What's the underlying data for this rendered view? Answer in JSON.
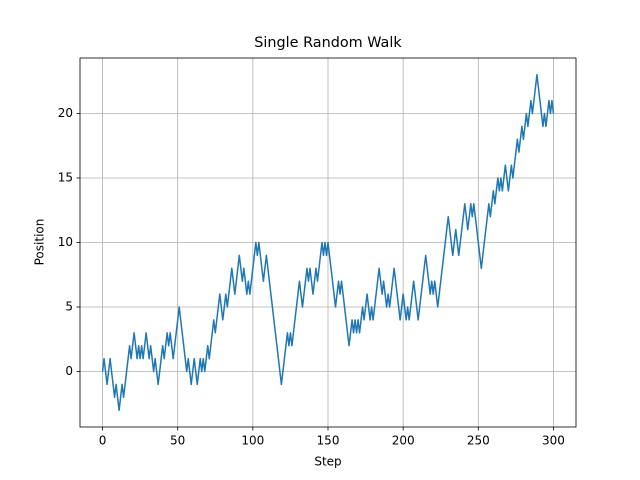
{
  "chart_data": {
    "type": "line",
    "title": "Single Random Walk",
    "x_label": "Step",
    "y_label": "Position",
    "color": "#1f77b4",
    "grid": true,
    "xlim": [
      -15,
      315
    ],
    "ylim": [
      -4.3,
      24.3
    ],
    "xticks": [
      0,
      50,
      100,
      150,
      200,
      250,
      300
    ],
    "yticks": [
      0,
      5,
      10,
      15,
      20
    ],
    "x": [
      0,
      1,
      2,
      3,
      4,
      5,
      6,
      7,
      8,
      9,
      10,
      11,
      12,
      13,
      14,
      15,
      16,
      17,
      18,
      19,
      20,
      21,
      22,
      23,
      24,
      25,
      26,
      27,
      28,
      29,
      30,
      31,
      32,
      33,
      34,
      35,
      36,
      37,
      38,
      39,
      40,
      41,
      42,
      43,
      44,
      45,
      46,
      47,
      48,
      49,
      50,
      51,
      52,
      53,
      54,
      55,
      56,
      57,
      58,
      59,
      60,
      61,
      62,
      63,
      64,
      65,
      66,
      67,
      68,
      69,
      70,
      71,
      72,
      73,
      74,
      75,
      76,
      77,
      78,
      79,
      80,
      81,
      82,
      83,
      84,
      85,
      86,
      87,
      88,
      89,
      90,
      91,
      92,
      93,
      94,
      95,
      96,
      97,
      98,
      99,
      100,
      101,
      102,
      103,
      104,
      105,
      106,
      107,
      108,
      109,
      110,
      111,
      112,
      113,
      114,
      115,
      116,
      117,
      118,
      119,
      120,
      121,
      122,
      123,
      124,
      125,
      126,
      127,
      128,
      129,
      130,
      131,
      132,
      133,
      134,
      135,
      136,
      137,
      138,
      139,
      140,
      141,
      142,
      143,
      144,
      145,
      146,
      147,
      148,
      149,
      150,
      151,
      152,
      153,
      154,
      155,
      156,
      157,
      158,
      159,
      160,
      161,
      162,
      163,
      164,
      165,
      166,
      167,
      168,
      169,
      170,
      171,
      172,
      173,
      174,
      175,
      176,
      177,
      178,
      179,
      180,
      181,
      182,
      183,
      184,
      185,
      186,
      187,
      188,
      189,
      190,
      191,
      192,
      193,
      194,
      195,
      196,
      197,
      198,
      199,
      200,
      201,
      202,
      203,
      204,
      205,
      206,
      207,
      208,
      209,
      210,
      211,
      212,
      213,
      214,
      215,
      216,
      217,
      218,
      219,
      220,
      221,
      222,
      223,
      224,
      225,
      226,
      227,
      228,
      229,
      230,
      231,
      232,
      233,
      234,
      235,
      236,
      237,
      238,
      239,
      240,
      241,
      242,
      243,
      244,
      245,
      246,
      247,
      248,
      249,
      250,
      251,
      252,
      253,
      254,
      255,
      256,
      257,
      258,
      259,
      260,
      261,
      262,
      263,
      264,
      265,
      266,
      267,
      268,
      269,
      270,
      271,
      272,
      273,
      274,
      275,
      276,
      277,
      278,
      279,
      280,
      281,
      282,
      283,
      284,
      285,
      286,
      287,
      288,
      289,
      290,
      291,
      292,
      293,
      294,
      295,
      296,
      297,
      298,
      299,
      300
    ],
    "values": [
      0,
      1,
      0,
      -1,
      0,
      1,
      0,
      -1,
      -2,
      -1,
      -2,
      -3,
      -2,
      -1,
      -2,
      -1,
      0,
      1,
      2,
      1,
      2,
      3,
      2,
      1,
      2,
      1,
      2,
      1,
      2,
      3,
      2,
      1,
      2,
      1,
      0,
      1,
      0,
      -1,
      0,
      1,
      2,
      1,
      2,
      3,
      2,
      3,
      2,
      1,
      2,
      3,
      4,
      5,
      4,
      3,
      2,
      1,
      0,
      1,
      0,
      -1,
      0,
      1,
      0,
      -1,
      0,
      1,
      0,
      1,
      0,
      1,
      2,
      1,
      2,
      3,
      4,
      3,
      4,
      5,
      6,
      5,
      4,
      5,
      6,
      5,
      6,
      7,
      8,
      7,
      6,
      7,
      8,
      9,
      8,
      7,
      8,
      7,
      6,
      7,
      6,
      7,
      8,
      9,
      10,
      9,
      10,
      9,
      8,
      7,
      8,
      9,
      8,
      7,
      6,
      5,
      4,
      3,
      2,
      1,
      0,
      -1,
      0,
      1,
      2,
      3,
      2,
      3,
      2,
      3,
      4,
      5,
      6,
      7,
      6,
      5,
      6,
      7,
      8,
      7,
      8,
      7,
      6,
      7,
      8,
      7,
      8,
      9,
      10,
      9,
      10,
      9,
      10,
      9,
      8,
      7,
      6,
      5,
      6,
      7,
      6,
      7,
      6,
      5,
      4,
      3,
      2,
      3,
      4,
      3,
      4,
      3,
      4,
      3,
      4,
      5,
      4,
      5,
      6,
      5,
      4,
      5,
      4,
      5,
      6,
      7,
      8,
      7,
      6,
      7,
      6,
      5,
      6,
      5,
      6,
      7,
      8,
      7,
      6,
      5,
      4,
      5,
      6,
      5,
      4,
      5,
      4,
      5,
      6,
      7,
      6,
      5,
      4,
      5,
      6,
      7,
      8,
      9,
      8,
      7,
      6,
      7,
      6,
      7,
      6,
      5,
      6,
      7,
      8,
      9,
      10,
      11,
      12,
      11,
      10,
      9,
      10,
      11,
      10,
      9,
      10,
      11,
      12,
      13,
      12,
      11,
      12,
      13,
      12,
      13,
      12,
      11,
      10,
      9,
      8,
      9,
      10,
      11,
      12,
      13,
      12,
      13,
      14,
      13,
      14,
      15,
      14,
      15,
      14,
      15,
      16,
      15,
      14,
      15,
      16,
      15,
      16,
      17,
      18,
      17,
      18,
      19,
      18,
      19,
      20,
      19,
      20,
      21,
      20,
      21,
      22,
      23,
      22,
      21,
      20,
      19,
      20,
      19,
      20,
      21,
      20,
      21,
      20
    ]
  }
}
